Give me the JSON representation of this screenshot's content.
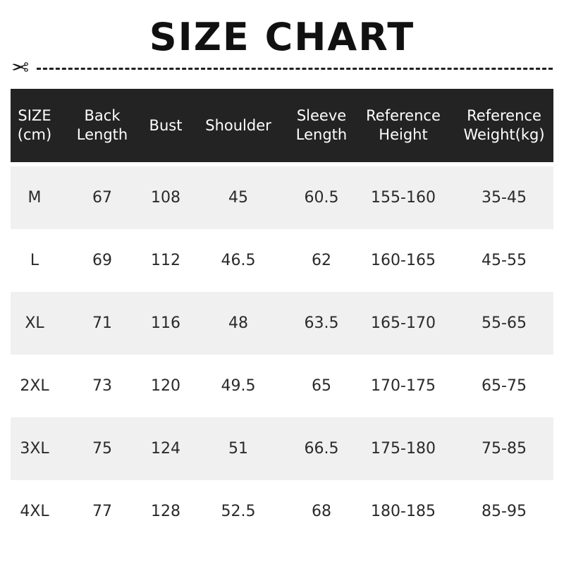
{
  "title": "SIZE CHART",
  "icons": {
    "cut": "scissors-icon"
  },
  "table": {
    "headers": [
      "SIZE\n(cm)",
      "Back\nLength",
      "Bust",
      "Shoulder",
      "Sleeve\nLength",
      "Reference\nHeight",
      "Reference\nWeight(kg)"
    ],
    "rows": [
      [
        "M",
        "67",
        "108",
        "45",
        "60.5",
        "155-160",
        "35-45"
      ],
      [
        "L",
        "69",
        "112",
        "46.5",
        "62",
        "160-165",
        "45-55"
      ],
      [
        "XL",
        "71",
        "116",
        "48",
        "63.5",
        "165-170",
        "55-65"
      ],
      [
        "2XL",
        "73",
        "120",
        "49.5",
        "65",
        "170-175",
        "65-75"
      ],
      [
        "3XL",
        "75",
        "124",
        "51",
        "66.5",
        "175-180",
        "75-85"
      ],
      [
        "4XL",
        "77",
        "128",
        "52.5",
        "68",
        "180-185",
        "85-95"
      ]
    ]
  },
  "colors": {
    "header_bg": "#232323",
    "stripe": "#f0f0f0"
  }
}
